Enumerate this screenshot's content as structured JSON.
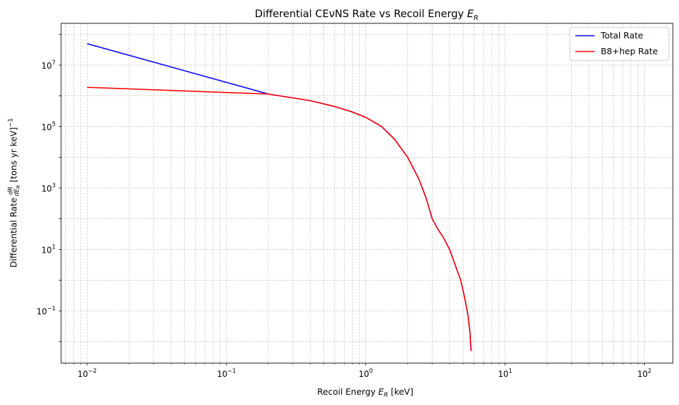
{
  "chart_data": {
    "type": "line",
    "title": "Differential CEνNS Rate vs Recoil Energy",
    "title_symbol": "E",
    "title_subscript": "R",
    "xlabel": "Recoil Energy",
    "xlabel_symbol": "E",
    "xlabel_subscript": "R",
    "xlabel_unit": "[keV]",
    "ylabel": "Differential Rate",
    "ylabel_fraction_num": "dR",
    "ylabel_fraction_den": "dE",
    "ylabel_fraction_den_sub": "R",
    "ylabel_unit": "[tons yr keV]",
    "ylabel_unit_exp": "−1",
    "x_scale": "log",
    "y_scale": "log",
    "xlim": [
      0.0065,
      160
    ],
    "ylim": [
      0.002,
      230000000
    ],
    "grid": true,
    "legend_position": "top-right",
    "x_ticks": [
      {
        "value": 0.01,
        "base": "10",
        "exp": "−2"
      },
      {
        "value": 0.1,
        "base": "10",
        "exp": "−1"
      },
      {
        "value": 1,
        "base": "10",
        "exp": "0"
      },
      {
        "value": 10,
        "base": "10",
        "exp": "1"
      },
      {
        "value": 100,
        "base": "10",
        "exp": "2"
      }
    ],
    "y_ticks": [
      {
        "value": 0.1,
        "base": "10",
        "exp": "−1"
      },
      {
        "value": 10,
        "base": "10",
        "exp": "1"
      },
      {
        "value": 1000,
        "base": "10",
        "exp": "3"
      },
      {
        "value": 100000,
        "base": "10",
        "exp": "5"
      },
      {
        "value": 10000000,
        "base": "10",
        "exp": "7"
      }
    ],
    "series": [
      {
        "name": "Total Rate",
        "color": "#0000ff",
        "x": [
          0.01,
          0.2,
          0.4,
          0.6,
          0.8,
          1.0,
          1.3,
          1.6,
          2.0,
          2.4,
          2.7,
          3.0,
          3.3,
          3.6,
          4.0,
          4.4,
          4.8,
          5.1,
          5.4,
          5.6,
          5.7
        ],
        "y": [
          50000000,
          1150000,
          700000,
          450000,
          300000,
          200000,
          100000,
          40000,
          10000,
          2000,
          500,
          100,
          45,
          25,
          10,
          3,
          1,
          0.3,
          0.08,
          0.02,
          0.005
        ]
      },
      {
        "name": "B8+hep Rate",
        "color": "#ff0000",
        "x": [
          0.01,
          0.2,
          0.4,
          0.6,
          0.8,
          1.0,
          1.3,
          1.6,
          2.0,
          2.4,
          2.7,
          3.0,
          3.3,
          3.6,
          4.0,
          4.4,
          4.8,
          5.1,
          5.4,
          5.6,
          5.7
        ],
        "y": [
          1900000,
          1150000,
          700000,
          450000,
          300000,
          200000,
          100000,
          40000,
          10000,
          2000,
          500,
          100,
          45,
          25,
          10,
          3,
          1,
          0.3,
          0.08,
          0.02,
          0.005
        ]
      }
    ]
  }
}
